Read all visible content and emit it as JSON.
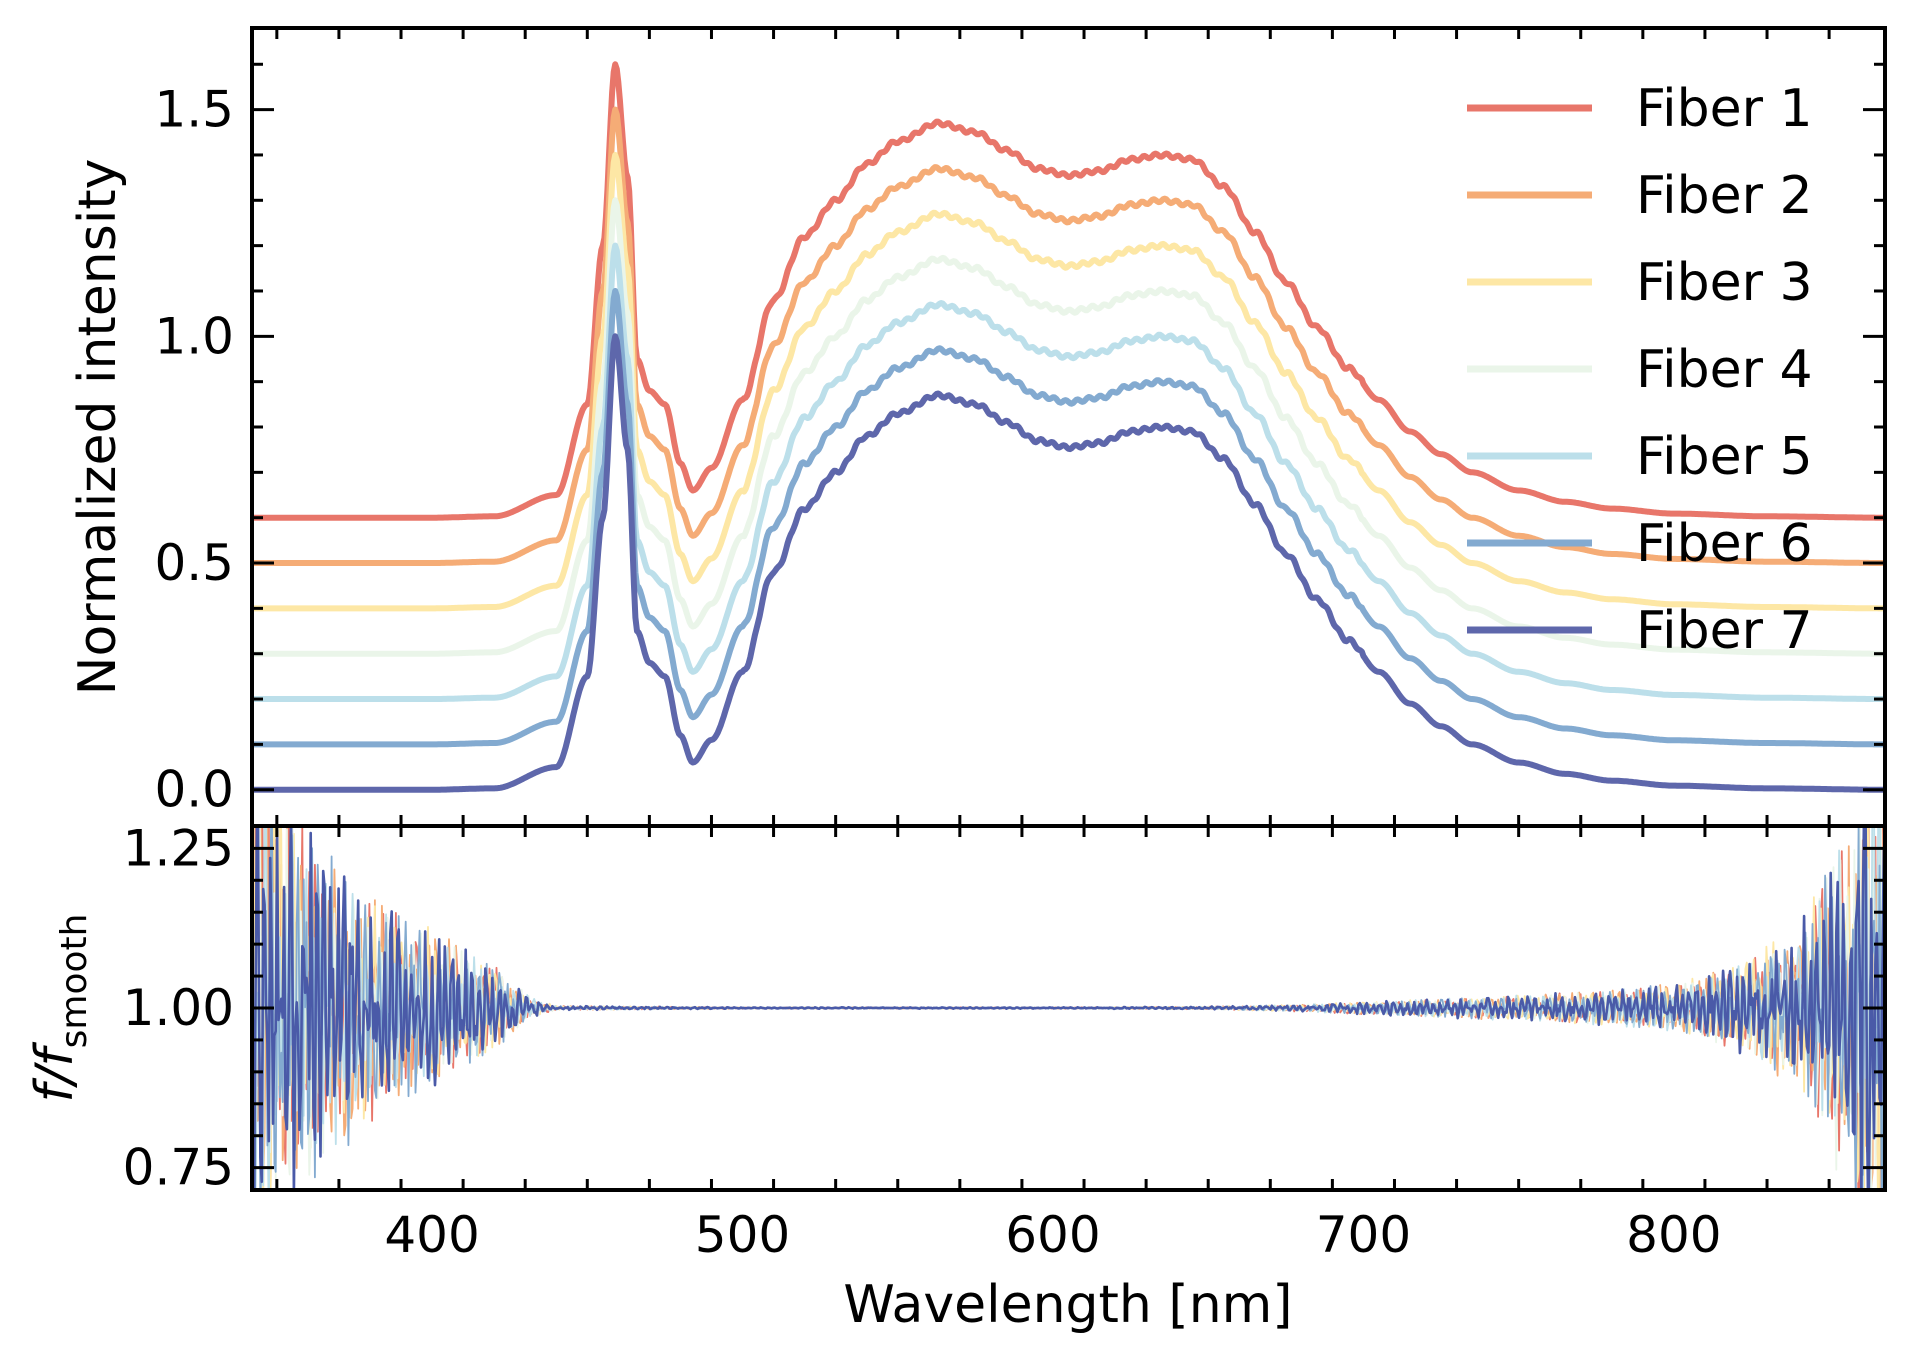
{
  "chart_data": [
    {
      "panel": "top",
      "type": "line",
      "title": "",
      "xlabel": "",
      "ylabel": "Normalized intensity",
      "xlim": [
        342,
        868
      ],
      "ylim": [
        -0.08,
        1.68
      ],
      "xticks": [
        400,
        500,
        600,
        700,
        800
      ],
      "yticks": [
        0.0,
        0.5,
        1.0,
        1.5
      ],
      "ytick_labels": [
        "0.0",
        "0.5",
        "1.0",
        "1.5"
      ],
      "grid": false,
      "legend_position": "top-right",
      "signal_shape": {
        "description": "same spectral profile per fiber, shifted vertically by offset",
        "x": [
          342,
          400,
          420,
          440,
          450,
          455,
          459,
          463,
          466,
          470,
          475,
          480,
          484,
          490,
          500,
          510,
          520,
          530,
          540,
          550,
          563,
          575,
          585,
          595,
          605,
          615,
          625,
          635,
          645,
          655,
          665,
          675,
          685,
          695,
          705,
          715,
          725,
          735,
          750,
          765,
          780,
          800,
          830,
          868
        ],
        "y": [
          0.0,
          0.0,
          0.003,
          0.05,
          0.25,
          0.6,
          1.0,
          0.75,
          0.35,
          0.28,
          0.25,
          0.12,
          0.06,
          0.11,
          0.26,
          0.48,
          0.62,
          0.7,
          0.78,
          0.83,
          0.87,
          0.85,
          0.81,
          0.77,
          0.755,
          0.765,
          0.79,
          0.8,
          0.79,
          0.73,
          0.63,
          0.52,
          0.42,
          0.33,
          0.26,
          0.19,
          0.14,
          0.1,
          0.06,
          0.035,
          0.02,
          0.009,
          0.003,
          0.0
        ]
      },
      "series": [
        {
          "name": "Fiber 1",
          "offset": 0.6,
          "peak": 1.6,
          "color": "#e8766a"
        },
        {
          "name": "Fiber 2",
          "offset": 0.5,
          "peak": 1.5,
          "color": "#f5ac76"
        },
        {
          "name": "Fiber 3",
          "offset": 0.4,
          "peak": 1.4,
          "color": "#fde7a5"
        },
        {
          "name": "Fiber 4",
          "offset": 0.3,
          "peak": 1.3,
          "color": "#eaf5e9"
        },
        {
          "name": "Fiber 5",
          "offset": 0.2,
          "peak": 1.2,
          "color": "#bcdfea"
        },
        {
          "name": "Fiber 6",
          "offset": 0.1,
          "peak": 1.1,
          "color": "#83aad0"
        },
        {
          "name": "Fiber 7",
          "offset": 0.0,
          "peak": 1.0,
          "color": "#5e67ab"
        }
      ]
    },
    {
      "panel": "bottom",
      "type": "line",
      "title": "",
      "xlabel": "Wavelength [nm]",
      "ylabel_main": "f/f",
      "ylabel_sub": "smooth",
      "xlim": [
        342,
        868
      ],
      "ylim": [
        0.715,
        1.285
      ],
      "xticks": [
        400,
        500,
        600,
        700,
        800
      ],
      "xtick_labels": [
        "400",
        "500",
        "600",
        "700",
        "800"
      ],
      "yticks": [
        0.75,
        1.0,
        1.25
      ],
      "ytick_labels": [
        "0.75",
        "1.00",
        "1.25"
      ],
      "grid": false,
      "description": "residual noise around 1.00 for each fiber; large at both ends, near-flat between ~440 and ~700 nm",
      "noise_envelope": {
        "x": [
          342,
          360,
          380,
          400,
          420,
          432,
          440,
          500,
          600,
          650,
          680,
          700,
          720,
          740,
          760,
          780,
          800,
          820,
          840,
          855,
          868
        ],
        "amplitude": [
          0.45,
          0.25,
          0.16,
          0.11,
          0.06,
          0.015,
          0.003,
          0.001,
          0.001,
          0.002,
          0.005,
          0.009,
          0.012,
          0.016,
          0.02,
          0.025,
          0.035,
          0.06,
          0.11,
          0.25,
          0.45
        ]
      },
      "series": [
        {
          "name": "Fiber 1",
          "color": "#e8766a"
        },
        {
          "name": "Fiber 2",
          "color": "#f5ac76"
        },
        {
          "name": "Fiber 3",
          "color": "#fde7a5"
        },
        {
          "name": "Fiber 4",
          "color": "#eaf5e9"
        },
        {
          "name": "Fiber 5",
          "color": "#bcdfea"
        },
        {
          "name": "Fiber 6",
          "color": "#83aad0"
        },
        {
          "name": "Fiber 7",
          "color": "#4a5aa8"
        }
      ]
    }
  ]
}
